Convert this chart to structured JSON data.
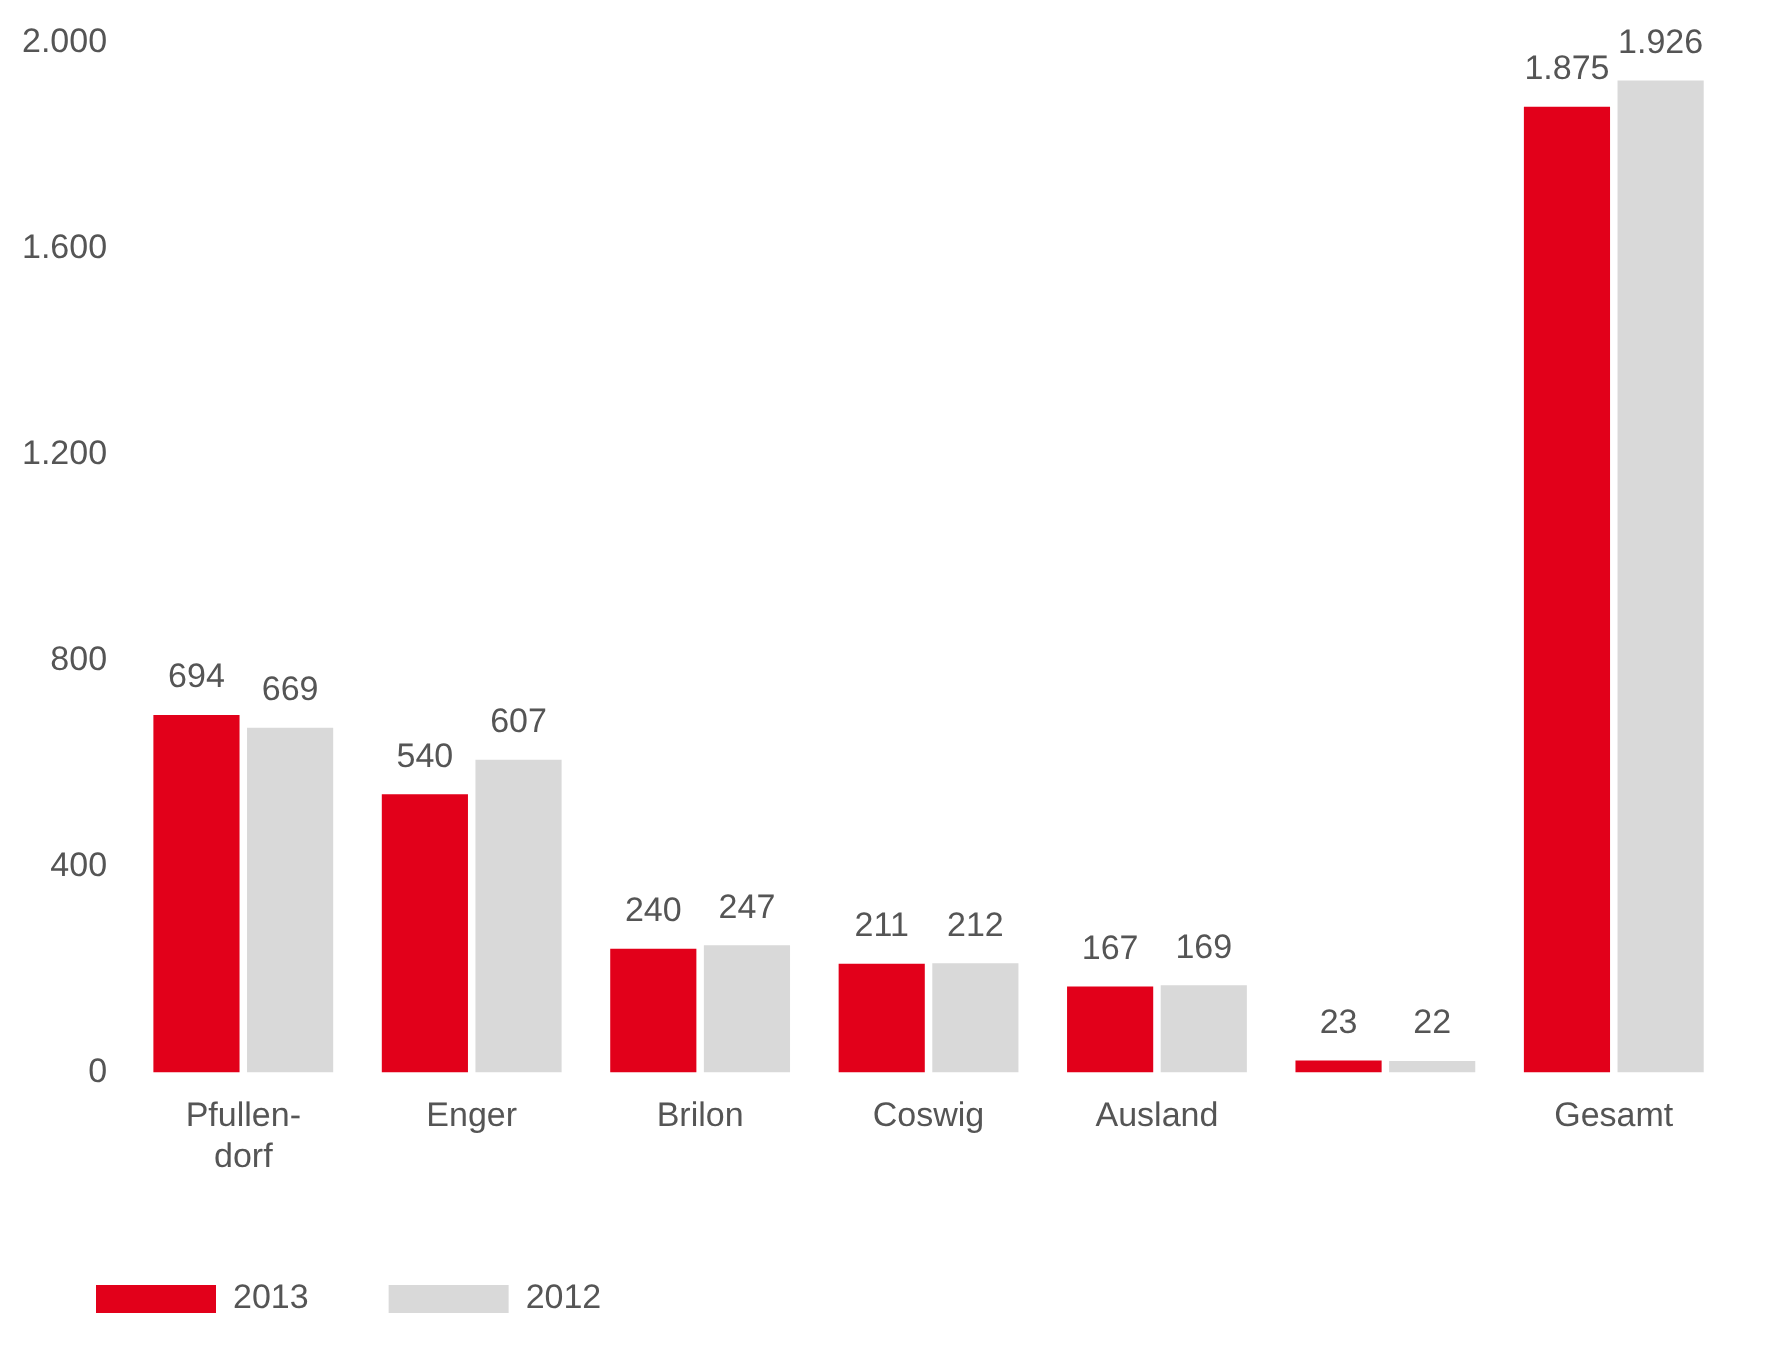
{
  "chart_data": {
    "type": "bar",
    "categories": [
      "Pfullen-dorf",
      "Enger",
      "Brilon",
      "Coswig",
      "Ausland",
      null,
      "Gesamt"
    ],
    "series": [
      {
        "name": "2013",
        "color": "#e2001a",
        "values": [
          694,
          540,
          240,
          211,
          167,
          23,
          1875
        ],
        "value_labels": [
          "694",
          "540",
          "240",
          "211",
          "167",
          "23",
          "1.875"
        ]
      },
      {
        "name": "2012",
        "color": "#d9d9d9",
        "values": [
          669,
          607,
          247,
          212,
          169,
          22,
          1926
        ],
        "value_labels": [
          "669",
          "607",
          "247",
          "212",
          "169",
          "22",
          "1.926"
        ]
      }
    ],
    "ylim": [
      0,
      2000
    ],
    "yticks": [
      {
        "value": 0,
        "label": "0"
      },
      {
        "value": 400,
        "label": "400"
      },
      {
        "value": 800,
        "label": "800"
      },
      {
        "value": 1200,
        "label": "1.200"
      },
      {
        "value": 1600,
        "label": "1.600"
      },
      {
        "value": 2000,
        "label": "2.000"
      }
    ],
    "grid": false,
    "legend": "bottom left"
  }
}
